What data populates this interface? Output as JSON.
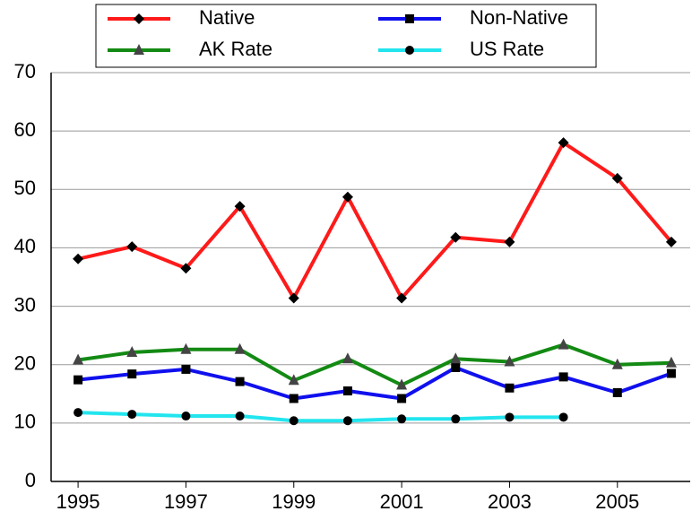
{
  "chart_data": {
    "type": "line",
    "x": [
      1995,
      1996,
      1997,
      1998,
      1999,
      2000,
      2001,
      2002,
      2003,
      2004,
      2005,
      2006
    ],
    "series": [
      {
        "name": "Native",
        "color": "#ff1a1a",
        "marker": "diamond",
        "values": [
          38.1,
          40.2,
          36.5,
          47.1,
          31.4,
          48.7,
          31.4,
          41.8,
          41.0,
          58.0,
          51.9,
          41.0
        ]
      },
      {
        "name": "Non-Native",
        "color": "#1010ee",
        "marker": "square",
        "values": [
          17.4,
          18.4,
          19.2,
          17.1,
          14.2,
          15.5,
          14.2,
          19.5,
          16.0,
          17.9,
          15.2,
          18.5
        ]
      },
      {
        "name": "AK Rate",
        "color": "#138a13",
        "marker": "triangle",
        "values": [
          20.8,
          22.1,
          22.6,
          22.6,
          17.3,
          21.0,
          16.5,
          21.0,
          20.5,
          23.4,
          20.0,
          20.3
        ]
      },
      {
        "name": "US Rate",
        "color": "#22e5ee",
        "marker": "circle",
        "values": [
          11.8,
          11.5,
          11.2,
          11.2,
          10.4,
          10.4,
          10.7,
          10.7,
          11.0,
          11.0,
          null,
          null
        ]
      }
    ],
    "xlim": [
      1994.5,
      2006.35
    ],
    "xticks": [
      1995,
      1997,
      1999,
      2001,
      2003,
      2005
    ],
    "ylim": [
      0,
      70
    ],
    "yticks": [
      0,
      10,
      20,
      30,
      40,
      50,
      60,
      70
    ],
    "grid": true,
    "legend": "top"
  }
}
